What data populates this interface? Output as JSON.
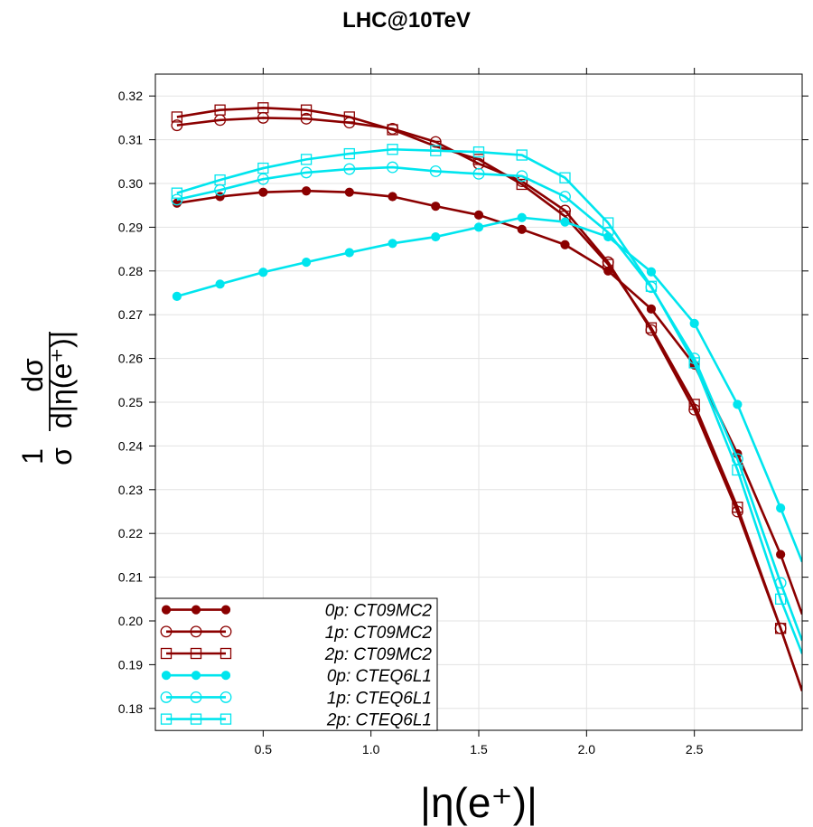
{
  "chart_data": {
    "type": "line",
    "title": "LHC@10TeV",
    "xlabel": "|η(e⁺)|",
    "ylabel": {
      "numerator": "1",
      "numerator_right": "dσ",
      "denominator_left": "σ",
      "denominator_right": "d|η(e⁺)|"
    },
    "xlim": [
      0.0,
      3.0
    ],
    "ylim": [
      0.175,
      0.325
    ],
    "xticks": [
      0.5,
      1.0,
      1.5,
      2.0,
      2.5
    ],
    "xtick_labels": [
      "0.5",
      "1.0",
      "1.5",
      "2.0",
      "2.5"
    ],
    "yticks": [
      0.18,
      0.19,
      0.2,
      0.21,
      0.22,
      0.23,
      0.24,
      0.25,
      0.26,
      0.27,
      0.28,
      0.29,
      0.3,
      0.31,
      0.32
    ],
    "ytick_labels": [
      "0.18",
      "0.19",
      "0.20",
      "0.21",
      "0.22",
      "0.23",
      "0.24",
      "0.25",
      "0.26",
      "0.27",
      "0.28",
      "0.29",
      "0.30",
      "0.31",
      "0.32"
    ],
    "grid": true,
    "legend_position": "bottom-left",
    "x": [
      0.1,
      0.3,
      0.5,
      0.7,
      0.9,
      1.1,
      1.3,
      1.5,
      1.7,
      1.9,
      2.1,
      2.3,
      2.5,
      2.7,
      2.9
    ],
    "series": [
      {
        "name": "0p: CT09MC2",
        "color": "#8b0000",
        "marker": "filled-circle",
        "values": [
          0.2955,
          0.297,
          0.298,
          0.2983,
          0.298,
          0.297,
          0.2948,
          0.2928,
          0.2895,
          0.286,
          0.28,
          0.2713,
          0.2585,
          0.2382,
          0.2152
        ],
        "extend_to": [
          3.0,
          0.2015
        ]
      },
      {
        "name": "1p: CT09MC2",
        "color": "#8b0000",
        "marker": "open-circle",
        "values": [
          0.3133,
          0.3145,
          0.315,
          0.3148,
          0.3139,
          0.3125,
          0.3095,
          0.3045,
          0.3005,
          0.2938,
          0.282,
          0.2665,
          0.2483,
          0.225,
          0.1983
        ],
        "extend_to": [
          3.0,
          0.184
        ]
      },
      {
        "name": "2p: CT09MC2",
        "color": "#8b0000",
        "marker": "open-square",
        "values": [
          0.3152,
          0.3168,
          0.3173,
          0.3168,
          0.3152,
          0.3123,
          0.3085,
          0.3055,
          0.2998,
          0.2925,
          0.2815,
          0.267,
          0.2495,
          0.226,
          0.1983
        ],
        "extend_to": [
          3.0,
          0.184
        ]
      },
      {
        "name": "0p: CTEQ6L1",
        "color": "#00e5ee",
        "marker": "filled-circle",
        "values": [
          0.2742,
          0.277,
          0.2797,
          0.282,
          0.2842,
          0.2863,
          0.2878,
          0.29,
          0.2922,
          0.2912,
          0.2878,
          0.2798,
          0.268,
          0.2495,
          0.2258
        ],
        "extend_to": [
          3.0,
          0.2135
        ]
      },
      {
        "name": "1p: CTEQ6L1",
        "color": "#00e5ee",
        "marker": "open-circle",
        "values": [
          0.2963,
          0.2985,
          0.301,
          0.3025,
          0.3033,
          0.3037,
          0.3028,
          0.3022,
          0.3017,
          0.297,
          0.2888,
          0.2763,
          0.26,
          0.237,
          0.2087
        ],
        "extend_to": [
          3.0,
          0.1955
        ]
      },
      {
        "name": "2p: CTEQ6L1",
        "color": "#00e5ee",
        "marker": "open-square",
        "values": [
          0.2978,
          0.3008,
          0.3035,
          0.3055,
          0.3068,
          0.3078,
          0.3075,
          0.3072,
          0.3065,
          0.3013,
          0.291,
          0.2765,
          0.259,
          0.2345,
          0.205
        ],
        "extend_to": [
          3.0,
          0.1925
        ]
      }
    ]
  }
}
